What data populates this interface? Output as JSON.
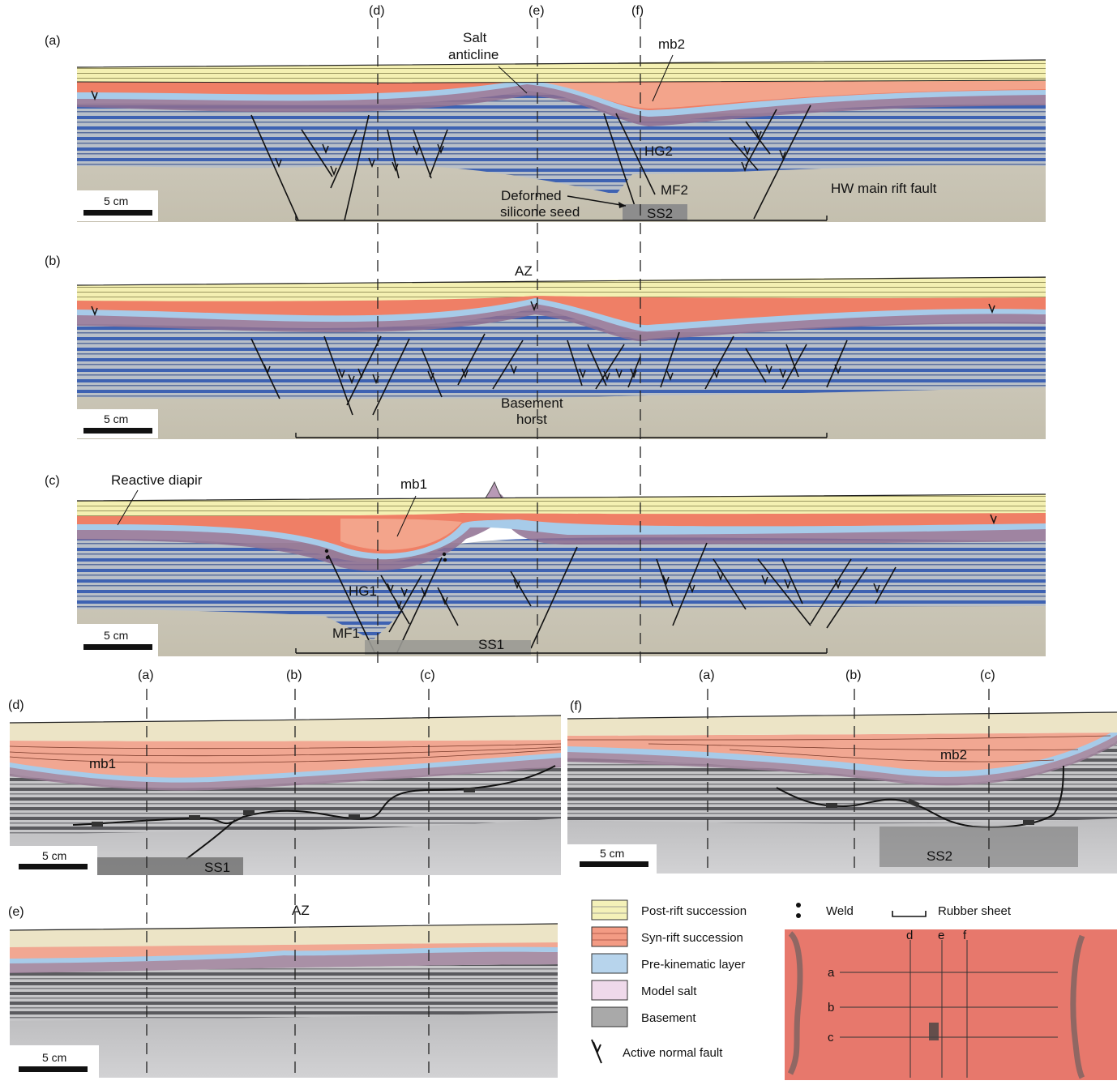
{
  "panels": {
    "a": {
      "letter": "(a)",
      "scale": "5 cm"
    },
    "b": {
      "letter": "(b)",
      "scale": "5 cm"
    },
    "c": {
      "letter": "(c)",
      "scale": "5 cm"
    },
    "d": {
      "letter": "(d)",
      "scale": "5 cm"
    },
    "e": {
      "letter": "(e)",
      "scale": "5 cm"
    },
    "f": {
      "letter": "(f)",
      "scale": "5 cm"
    }
  },
  "section_lines_top": [
    "(d)",
    "(e)",
    "(f)"
  ],
  "section_lines_left": [
    "(a)",
    "(b)",
    "(c)"
  ],
  "section_lines_right": [
    "(a)",
    "(b)",
    "(c)"
  ],
  "annotations": {
    "salt_anticline_1": "Salt",
    "salt_anticline_2": "anticline",
    "mb2": "mb2",
    "hg2": "HG2",
    "mf2": "MF2",
    "ss2": "SS2",
    "deformed_1": "Deformed",
    "deformed_2": "silicone seed",
    "hw_fault": "HW main rift fault",
    "az": "AZ",
    "basement_1": "Basement",
    "basement_2": "horst",
    "reactive_diapir": "Reactive diapir",
    "mb1": "mb1",
    "hg1": "HG1",
    "mf1": "MF1",
    "ss1": "SS1"
  },
  "legend": {
    "items": [
      {
        "label": "Post-rift succession",
        "color": "#f4f1b8"
      },
      {
        "label": "Syn-rift succession",
        "color": "#f39b84"
      },
      {
        "label": "Pre-kinematic layer",
        "color": "#b7d4ec"
      },
      {
        "label": "Model salt",
        "color": "#efd9ea"
      },
      {
        "label": "Basement",
        "color": "#a9a9a9"
      }
    ],
    "fault": "Active normal fault",
    "weld": "Weld",
    "rubber": "Rubber sheet"
  },
  "map": {
    "col_labels": [
      "d",
      "e",
      "f"
    ],
    "row_labels": [
      "a",
      "b",
      "c"
    ],
    "color": "#e8776b"
  },
  "colors": {
    "postrift": "#f1eeb4",
    "synrift": "#ee7a62",
    "prekin": "#a9cbe7",
    "salt": "#8a6a8c",
    "basement_blue": "#3b5fb0",
    "sand": "#c8c3b2",
    "grey": "#9a9a9a"
  }
}
